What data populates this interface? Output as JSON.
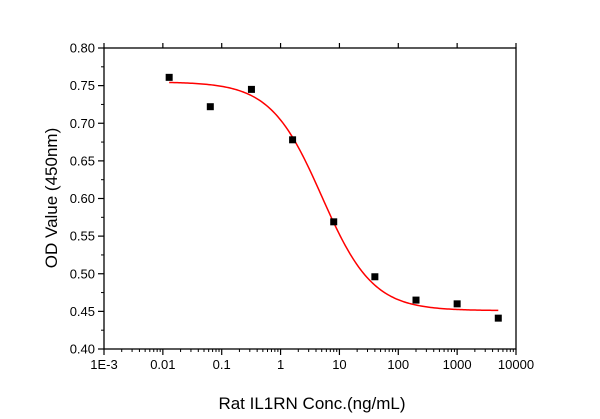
{
  "chart_data": {
    "type": "scatter",
    "xlabel": "Rat IL1RN Conc.(ng/mL)",
    "ylabel": "OD Value (450nm)",
    "xscale": "log",
    "xlim": [
      0.001,
      10000
    ],
    "ylim": [
      0.4,
      0.8
    ],
    "xticks": [
      {
        "value": 0.001,
        "label": "1E-3"
      },
      {
        "value": 0.01,
        "label": "0.01"
      },
      {
        "value": 0.1,
        "label": "0.1"
      },
      {
        "value": 1,
        "label": "1"
      },
      {
        "value": 10,
        "label": "10"
      },
      {
        "value": 100,
        "label": "100"
      },
      {
        "value": 1000,
        "label": "1000"
      },
      {
        "value": 10000,
        "label": "10000"
      }
    ],
    "yticks": [
      {
        "value": 0.4,
        "label": "0.40"
      },
      {
        "value": 0.45,
        "label": "0.45"
      },
      {
        "value": 0.5,
        "label": "0.50"
      },
      {
        "value": 0.55,
        "label": "0.55"
      },
      {
        "value": 0.6,
        "label": "0.60"
      },
      {
        "value": 0.65,
        "label": "0.65"
      },
      {
        "value": 0.7,
        "label": "0.70"
      },
      {
        "value": 0.75,
        "label": "0.75"
      },
      {
        "value": 0.8,
        "label": "0.80"
      }
    ],
    "points": [
      {
        "x": 0.0128,
        "y": 0.761
      },
      {
        "x": 0.064,
        "y": 0.722
      },
      {
        "x": 0.32,
        "y": 0.745
      },
      {
        "x": 1.6,
        "y": 0.678
      },
      {
        "x": 8,
        "y": 0.569
      },
      {
        "x": 40,
        "y": 0.496
      },
      {
        "x": 200,
        "y": 0.465
      },
      {
        "x": 1000,
        "y": 0.46
      },
      {
        "x": 5000,
        "y": 0.441
      }
    ],
    "fit": {
      "model": "4PL",
      "top": 0.755,
      "bottom": 0.451,
      "ec50": 5.0,
      "hill": 1.0,
      "xrange": [
        0.0128,
        5000
      ]
    },
    "marker_color": "#000000",
    "fit_color": "#ff0000",
    "grid": false,
    "legend": "none"
  }
}
